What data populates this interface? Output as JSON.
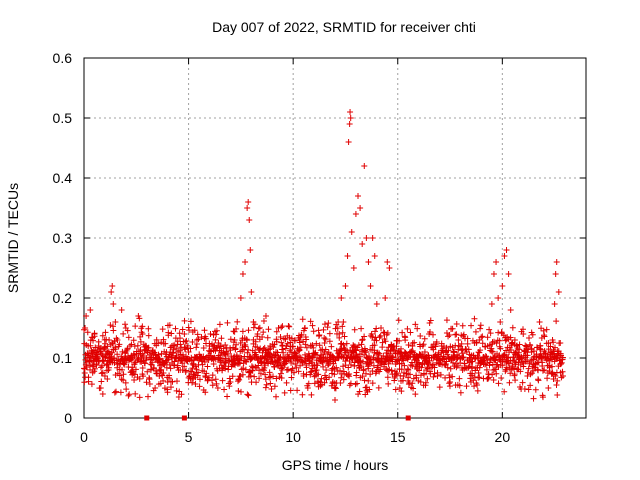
{
  "chart_data": {
    "type": "scatter",
    "title": "Day 007 of 2022, SRMTID for receiver chti",
    "xlabel": "GPS time / hours",
    "ylabel": "SRMTID / TECUs",
    "xlim": [
      0,
      24
    ],
    "ylim": [
      0,
      0.6
    ],
    "xticks": [
      0,
      5,
      10,
      15,
      20
    ],
    "yticks": [
      0,
      0.1,
      0.2,
      0.3,
      0.4,
      0.5,
      0.6
    ],
    "xtick_labels": [
      "0",
      "5",
      "10",
      "15",
      "20"
    ],
    "ytick_labels": [
      "0",
      "0.1",
      "0.2",
      "0.3",
      "0.4",
      "0.5",
      "0.6"
    ],
    "grid": true,
    "marker": "+",
    "marker_color": "#e00000",
    "baseline": {
      "min": 0.03,
      "max": 0.22,
      "center": 0.1
    },
    "series": [
      {
        "name": "SRMTID",
        "points": [
          [
            0.05,
            0.15
          ],
          [
            0.1,
            0.17
          ],
          [
            0.2,
            0.12
          ],
          [
            0.3,
            0.18
          ],
          [
            0.4,
            0.11
          ],
          [
            0.5,
            0.14
          ],
          [
            0.6,
            0.09
          ],
          [
            0.7,
            0.12
          ],
          [
            0.8,
            0.05
          ],
          [
            0.9,
            0.04
          ],
          [
            1.0,
            0.07
          ],
          [
            1.1,
            0.09
          ],
          [
            1.2,
            0.13
          ],
          [
            1.3,
            0.21
          ],
          [
            1.35,
            0.22
          ],
          [
            1.4,
            0.19
          ],
          [
            1.5,
            0.16
          ],
          [
            1.6,
            0.13
          ],
          [
            1.8,
            0.18
          ],
          [
            2.0,
            0.15
          ],
          [
            2.2,
            0.12
          ],
          [
            2.4,
            0.09
          ],
          [
            2.6,
            0.17
          ],
          [
            2.8,
            0.14
          ],
          [
            3.0,
            0.1
          ],
          [
            3.2,
            0.08
          ],
          [
            3.4,
            0.05
          ],
          [
            3.6,
            0.07
          ],
          [
            3.8,
            0.09
          ],
          [
            4.0,
            0.06
          ],
          [
            4.2,
            0.12
          ],
          [
            4.4,
            0.1
          ],
          [
            4.6,
            0.08
          ],
          [
            4.8,
            0.14
          ],
          [
            5.0,
            0.11
          ],
          [
            5.2,
            0.09
          ],
          [
            5.4,
            0.13
          ],
          [
            5.6,
            0.1
          ],
          [
            5.8,
            0.07
          ],
          [
            6.0,
            0.12
          ],
          [
            6.2,
            0.09
          ],
          [
            6.4,
            0.05
          ],
          [
            6.6,
            0.08
          ],
          [
            6.8,
            0.11
          ],
          [
            7.0,
            0.06
          ],
          [
            7.2,
            0.13
          ],
          [
            7.4,
            0.1
          ],
          [
            7.5,
            0.2
          ],
          [
            7.6,
            0.24
          ],
          [
            7.7,
            0.26
          ],
          [
            7.8,
            0.35
          ],
          [
            7.85,
            0.36
          ],
          [
            7.9,
            0.33
          ],
          [
            7.95,
            0.28
          ],
          [
            8.0,
            0.21
          ],
          [
            8.1,
            0.16
          ],
          [
            8.3,
            0.14
          ],
          [
            8.5,
            0.1
          ],
          [
            8.7,
            0.17
          ],
          [
            8.9,
            0.12
          ],
          [
            9.1,
            0.1
          ],
          [
            9.3,
            0.15
          ],
          [
            9.5,
            0.12
          ],
          [
            9.7,
            0.08
          ],
          [
            9.9,
            0.11
          ],
          [
            10.1,
            0.09
          ],
          [
            10.3,
            0.13
          ],
          [
            10.5,
            0.07
          ],
          [
            10.7,
            0.05
          ],
          [
            10.9,
            0.1
          ],
          [
            11.1,
            0.08
          ],
          [
            11.3,
            0.06
          ],
          [
            11.5,
            0.11
          ],
          [
            11.7,
            0.09
          ],
          [
            11.9,
            0.06
          ],
          [
            12.0,
            0.03
          ],
          [
            12.1,
            0.1
          ],
          [
            12.2,
            0.14
          ],
          [
            12.3,
            0.2
          ],
          [
            12.4,
            0.16
          ],
          [
            12.5,
            0.22
          ],
          [
            12.6,
            0.27
          ],
          [
            12.65,
            0.46
          ],
          [
            12.7,
            0.49
          ],
          [
            12.72,
            0.51
          ],
          [
            12.75,
            0.5
          ],
          [
            12.8,
            0.31
          ],
          [
            12.9,
            0.25
          ],
          [
            13.0,
            0.34
          ],
          [
            13.1,
            0.37
          ],
          [
            13.2,
            0.35
          ],
          [
            13.3,
            0.29
          ],
          [
            13.4,
            0.42
          ],
          [
            13.5,
            0.3
          ],
          [
            13.6,
            0.26
          ],
          [
            13.7,
            0.22
          ],
          [
            13.8,
            0.3
          ],
          [
            13.9,
            0.27
          ],
          [
            14.0,
            0.19
          ],
          [
            14.2,
            0.15
          ],
          [
            14.4,
            0.2
          ],
          [
            14.5,
            0.26
          ],
          [
            14.6,
            0.25
          ],
          [
            14.7,
            0.12
          ],
          [
            14.9,
            0.09
          ],
          [
            15.1,
            0.05
          ],
          [
            15.3,
            0.1
          ],
          [
            15.5,
            0.08
          ],
          [
            15.7,
            0.12
          ],
          [
            15.9,
            0.09
          ],
          [
            16.1,
            0.06
          ],
          [
            16.3,
            0.11
          ],
          [
            16.5,
            0.14
          ],
          [
            16.7,
            0.1
          ],
          [
            16.9,
            0.07
          ],
          [
            17.1,
            0.12
          ],
          [
            17.3,
            0.09
          ],
          [
            17.5,
            0.06
          ],
          [
            17.7,
            0.1
          ],
          [
            17.9,
            0.13
          ],
          [
            18.1,
            0.08
          ],
          [
            18.3,
            0.11
          ],
          [
            18.5,
            0.06
          ],
          [
            18.7,
            0.1
          ],
          [
            18.9,
            0.13
          ],
          [
            19.1,
            0.09
          ],
          [
            19.3,
            0.12
          ],
          [
            19.5,
            0.19
          ],
          [
            19.6,
            0.24
          ],
          [
            19.7,
            0.26
          ],
          [
            19.8,
            0.2
          ],
          [
            19.9,
            0.16
          ],
          [
            20.0,
            0.22
          ],
          [
            20.1,
            0.27
          ],
          [
            20.2,
            0.28
          ],
          [
            20.3,
            0.24
          ],
          [
            20.4,
            0.18
          ],
          [
            20.6,
            0.13
          ],
          [
            20.8,
            0.1
          ],
          [
            21.0,
            0.14
          ],
          [
            21.2,
            0.07
          ],
          [
            21.4,
            0.11
          ],
          [
            21.6,
            0.09
          ],
          [
            21.8,
            0.12
          ],
          [
            22.0,
            0.08
          ],
          [
            22.2,
            0.05
          ],
          [
            22.3,
            0.1
          ],
          [
            22.4,
            0.13
          ],
          [
            22.5,
            0.19
          ],
          [
            22.55,
            0.24
          ],
          [
            22.6,
            0.26
          ],
          [
            22.7,
            0.21
          ],
          [
            22.8,
            0.09
          ],
          [
            22.9,
            0.07
          ]
        ]
      }
    ],
    "zero_markers": [
      3.0,
      4.8,
      15.5
    ]
  }
}
